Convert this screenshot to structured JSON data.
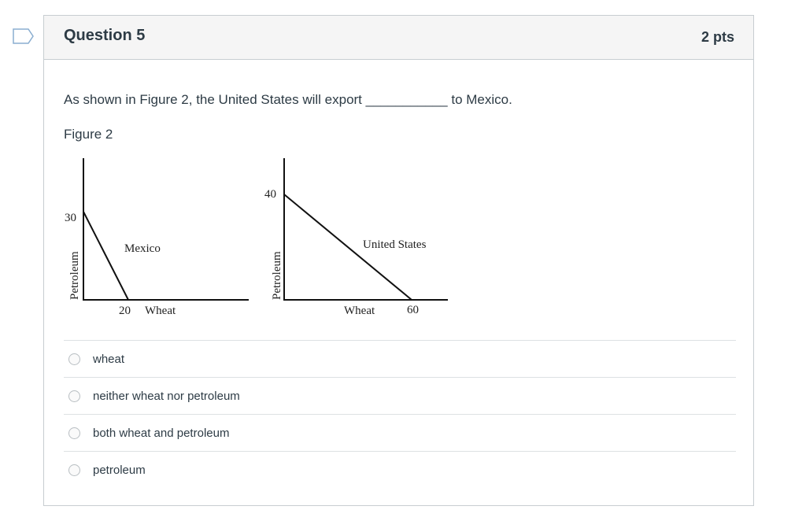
{
  "question": {
    "title": "Question 5",
    "points": "2 pts",
    "text": "As shown in Figure 2, the United States will export ___________ to Mexico.",
    "figure_label": "Figure 2"
  },
  "figure": {
    "mexico": {
      "label": "Mexico",
      "y_axis": "Petroleum",
      "x_axis": "Wheat",
      "y_intercept": "30",
      "x_intercept": "20"
    },
    "us": {
      "label": "United States",
      "y_axis": "Petroleum",
      "x_axis": "Wheat",
      "y_intercept": "40",
      "x_intercept": "60"
    }
  },
  "options": [
    {
      "label": "wheat"
    },
    {
      "label": "neither wheat nor petroleum"
    },
    {
      "label": "both wheat and petroleum"
    },
    {
      "label": "petroleum"
    }
  ]
}
